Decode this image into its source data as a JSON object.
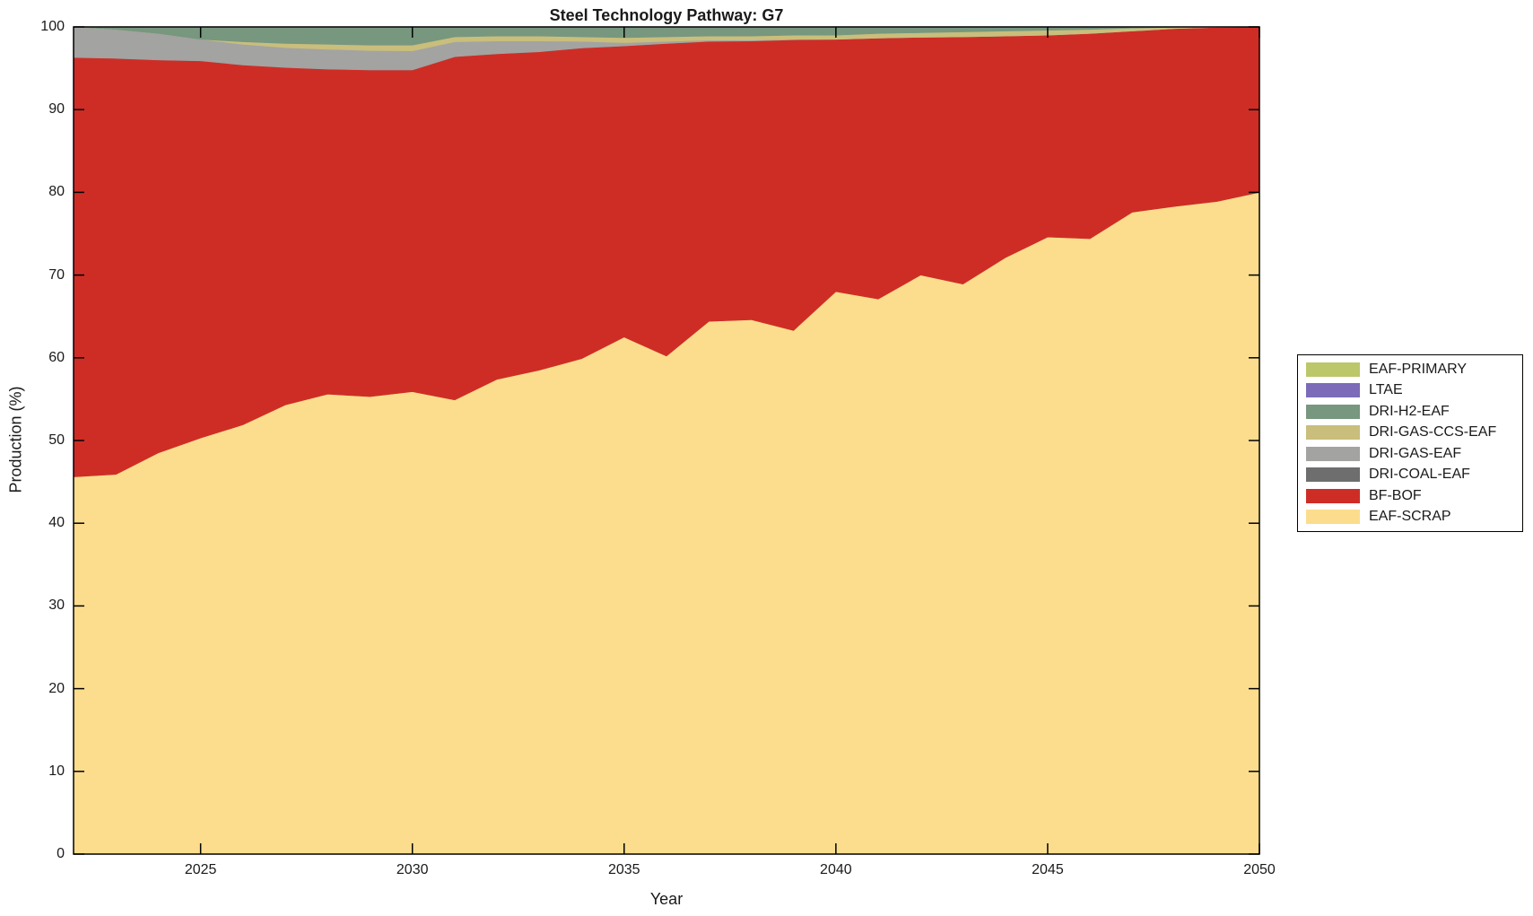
{
  "figure": {
    "background": "#ffffff",
    "axis_color": "#000000",
    "text_color": "#1a1a1a"
  },
  "chart_data": {
    "type": "area",
    "stacked": true,
    "title": "Steel Technology Pathway: G7",
    "xlabel": "Year",
    "ylabel": "Production (%)",
    "xlim": [
      2022,
      2050
    ],
    "ylim": [
      0,
      100
    ],
    "grid": false,
    "legend_position": "right-outside",
    "legend_order": "top-of-stack-first",
    "x_ticks": [
      2025,
      2030,
      2035,
      2040,
      2045,
      2050
    ],
    "y_ticks": [
      0,
      10,
      20,
      30,
      40,
      50,
      60,
      70,
      80,
      90,
      100
    ],
    "x": [
      2022,
      2023,
      2024,
      2025,
      2026,
      2027,
      2028,
      2029,
      2030,
      2031,
      2032,
      2033,
      2034,
      2035,
      2036,
      2037,
      2038,
      2039,
      2040,
      2041,
      2042,
      2043,
      2044,
      2045,
      2046,
      2047,
      2048,
      2049,
      2050
    ],
    "series": [
      {
        "name": "EAF-SCRAP",
        "color": "#FBDD8D",
        "values": [
          45.6,
          45.9,
          48.5,
          50.3,
          51.9,
          54.3,
          55.6,
          55.3,
          55.9,
          54.9,
          57.4,
          58.5,
          59.9,
          62.5,
          60.2,
          64.4,
          64.6,
          63.3,
          68.0,
          67.1,
          70.0,
          68.9,
          72.1,
          74.6,
          74.4,
          77.6,
          78.3,
          78.9,
          80.0
        ]
      },
      {
        "name": "BF-BOF",
        "color": "#CE2D26",
        "values": [
          50.7,
          50.3,
          47.5,
          45.6,
          43.5,
          40.8,
          39.3,
          39.5,
          38.9,
          41.5,
          39.35,
          38.5,
          37.55,
          35.2,
          37.8,
          33.85,
          33.7,
          35.15,
          30.5,
          31.55,
          28.75,
          29.9,
          26.8,
          24.4,
          24.8,
          21.9,
          21.5,
          21.05,
          20.0
        ]
      },
      {
        "name": "DRI-COAL-EAF",
        "color": "#6E6E6E",
        "values": [
          0,
          0,
          0,
          0,
          0,
          0,
          0,
          0,
          0,
          0,
          0,
          0,
          0,
          0,
          0,
          0,
          0,
          0,
          0,
          0,
          0,
          0,
          0,
          0,
          0,
          0,
          0,
          0,
          0
        ]
      },
      {
        "name": "DRI-GAS-EAF",
        "color": "#A3A3A1",
        "values": [
          3.7,
          3.5,
          3.2,
          2.6,
          2.5,
          2.4,
          2.4,
          2.35,
          2.3,
          1.8,
          1.55,
          1.3,
          0.8,
          0.4,
          0.25,
          0.15,
          0.1,
          0.05,
          0,
          0,
          0,
          0,
          0,
          0,
          0,
          0,
          0,
          0,
          0
        ]
      },
      {
        "name": "DRI-GAS-CCS-EAF",
        "color": "#C9BE7B",
        "values": [
          0,
          0,
          0,
          0,
          0.3,
          0.5,
          0.6,
          0.65,
          0.7,
          0.6,
          0.6,
          0.6,
          0.55,
          0.6,
          0.55,
          0.5,
          0.5,
          0.5,
          0.5,
          0.55,
          0.55,
          0.6,
          0.6,
          0.6,
          0.5,
          0.35,
          0.15,
          0.05,
          0
        ]
      },
      {
        "name": "DRI-H2-EAF",
        "color": "#77977F",
        "values": [
          0,
          0.3,
          0.8,
          1.5,
          1.8,
          2.0,
          2.1,
          2.2,
          2.2,
          1.2,
          1.1,
          1.1,
          1.2,
          1.3,
          1.2,
          1.1,
          1.1,
          1.0,
          1.0,
          0.8,
          0.7,
          0.6,
          0.5,
          0.4,
          0.3,
          0.15,
          0.05,
          0,
          0
        ]
      },
      {
        "name": "LTAE",
        "color": "#7B6BB9",
        "values": [
          0,
          0,
          0,
          0,
          0,
          0,
          0,
          0,
          0,
          0,
          0,
          0,
          0,
          0,
          0,
          0,
          0,
          0,
          0,
          0,
          0,
          0,
          0,
          0,
          0,
          0,
          0,
          0,
          0
        ]
      },
      {
        "name": "EAF-PRIMARY",
        "color": "#BCC76A",
        "values": [
          0,
          0,
          0,
          0,
          0,
          0,
          0,
          0,
          0,
          0,
          0,
          0,
          0,
          0,
          0,
          0,
          0,
          0,
          0,
          0,
          0,
          0,
          0,
          0,
          0,
          0,
          0,
          0,
          0
        ]
      }
    ]
  }
}
